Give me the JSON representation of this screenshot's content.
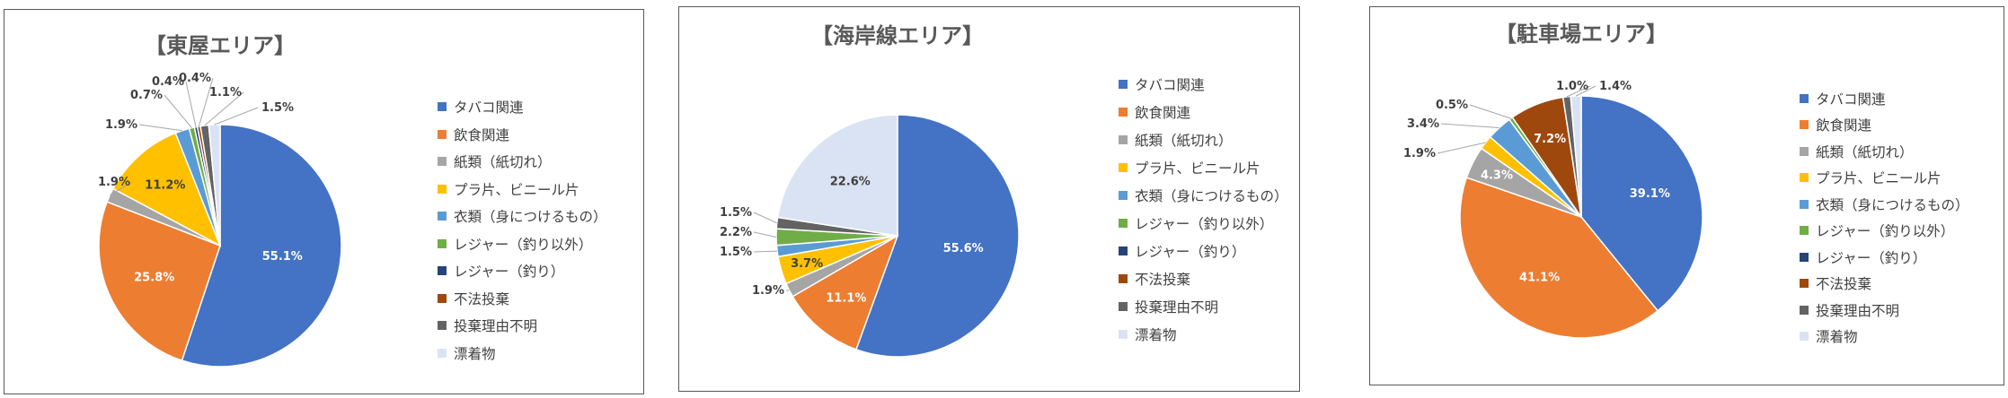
{
  "chart_data": [
    {
      "type": "pie",
      "title": "【東屋エリア】",
      "categories": [
        "タバコ関連",
        "飲食関連",
        "紙類（紙切れ）",
        "プラ片、ビニール片",
        "衣類（身につけるもの）",
        "レジャー（釣り以外）",
        "レジャー（釣り）",
        "不法投棄",
        "投棄理由不明",
        "漂着物"
      ],
      "values": [
        55.1,
        25.8,
        1.9,
        11.2,
        1.9,
        0.7,
        0.4,
        0.4,
        1.1,
        1.5
      ],
      "labels": [
        "55.1%",
        "25.8%",
        "1.9%",
        "11.2%",
        "1.9%",
        "0.7%",
        "0.4%",
        "0.4%",
        "1.1%",
        "1.5%"
      ],
      "legend_position": "right"
    },
    {
      "type": "pie",
      "title": "【海岸線エリア】",
      "categories": [
        "タバコ関連",
        "飲食関連",
        "紙類（紙切れ）",
        "プラ片、ビニール片",
        "衣類（身につけるもの）",
        "レジャー（釣り以外）",
        "レジャー（釣り）",
        "不法投棄",
        "投棄理由不明",
        "漂着物"
      ],
      "values": [
        55.6,
        11.1,
        1.9,
        3.7,
        1.5,
        2.2,
        0.0,
        0.0,
        1.5,
        22.6
      ],
      "labels": [
        "55.6%",
        "11.1%",
        "1.9%",
        "3.7%",
        "1.5%",
        "2.2%",
        "",
        "",
        "1.5%",
        "22.6%"
      ],
      "legend_position": "right"
    },
    {
      "type": "pie",
      "title": "【駐車場エリア】",
      "categories": [
        "タバコ関連",
        "飲食関連",
        "紙類（紙切れ）",
        "プラ片、ビニール片",
        "衣類（身につけるもの）",
        "レジャー（釣り以外）",
        "レジャー（釣り）",
        "不法投棄",
        "投棄理由不明",
        "漂着物"
      ],
      "values": [
        39.1,
        41.1,
        4.3,
        1.9,
        3.4,
        0.5,
        0.0,
        7.2,
        1.0,
        1.4
      ],
      "labels": [
        "39.1%",
        "41.1%",
        "4.3%",
        "1.9%",
        "3.4%",
        "0.5%",
        "",
        "7.2%",
        "1.0%",
        "1.4%"
      ],
      "legend_position": "right"
    }
  ],
  "colors": [
    "#4472c4",
    "#ed7d31",
    "#a5a5a5",
    "#ffc000",
    "#5b9bd5",
    "#70ad47",
    "#264478",
    "#9e480e",
    "#636363",
    "#dae3f3"
  ]
}
